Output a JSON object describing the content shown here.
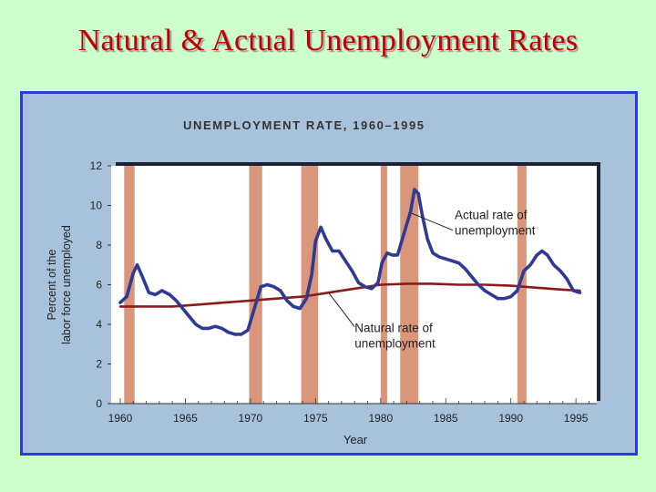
{
  "slide": {
    "title": "Natural & Actual Unemployment Rates"
  },
  "colors": {
    "slide_background": "#ccffcc",
    "title": "#c00000",
    "frame_border": "#2a3bd8",
    "figure_background": "#a9c2db",
    "plot_background": "#ffffff",
    "actual_line": "#2f3a94",
    "natural_line": "#8b1a1a",
    "recession_bands": "#d9967a"
  },
  "chart_data": {
    "type": "line",
    "title": "UNEMPLOYMENT RATE, 1960–1995",
    "xlabel": "Year",
    "ylabel": [
      "Percent of the",
      "labor force unemployed"
    ],
    "xlim": [
      1959.3,
      1996.6
    ],
    "ylim": [
      0,
      12
    ],
    "x_ticks": [
      1960,
      1965,
      1970,
      1975,
      1980,
      1985,
      1990,
      1995
    ],
    "y_ticks": [
      0,
      2,
      4,
      6,
      8,
      10,
      12
    ],
    "grid": false,
    "recession_periods": [
      [
        1960.3,
        1961.1
      ],
      [
        1969.9,
        1970.9
      ],
      [
        1973.9,
        1975.2
      ],
      [
        1980.0,
        1980.5
      ],
      [
        1981.5,
        1982.9
      ],
      [
        1990.5,
        1991.2
      ]
    ],
    "series": [
      {
        "name": "Actual rate of unemployment",
        "x": [
          1960.0,
          1960.5,
          1961.0,
          1961.3,
          1961.7,
          1962.2,
          1962.7,
          1963.2,
          1963.8,
          1964.3,
          1964.8,
          1965.3,
          1965.8,
          1966.3,
          1966.8,
          1967.3,
          1967.8,
          1968.3,
          1968.8,
          1969.3,
          1969.8,
          1970.3,
          1970.8,
          1971.3,
          1971.8,
          1972.3,
          1972.8,
          1973.3,
          1973.8,
          1974.3,
          1974.7,
          1975.0,
          1975.4,
          1975.8,
          1976.3,
          1976.8,
          1977.3,
          1977.8,
          1978.3,
          1978.8,
          1979.3,
          1979.8,
          1980.1,
          1980.5,
          1980.9,
          1981.3,
          1981.8,
          1982.3,
          1982.6,
          1982.9,
          1983.2,
          1983.6,
          1984.0,
          1984.5,
          1985.0,
          1985.5,
          1986.0,
          1986.5,
          1987.0,
          1987.5,
          1988.0,
          1988.5,
          1989.0,
          1989.5,
          1990.0,
          1990.5,
          1991.0,
          1991.5,
          1992.0,
          1992.4,
          1992.8,
          1993.3,
          1993.8,
          1994.3,
          1994.8,
          1995.3
        ],
        "values": [
          5.1,
          5.4,
          6.6,
          7.0,
          6.4,
          5.6,
          5.5,
          5.7,
          5.5,
          5.2,
          4.8,
          4.4,
          4.0,
          3.8,
          3.8,
          3.9,
          3.8,
          3.6,
          3.5,
          3.5,
          3.7,
          4.8,
          5.9,
          6.0,
          5.9,
          5.7,
          5.2,
          4.9,
          4.8,
          5.3,
          6.5,
          8.2,
          8.9,
          8.3,
          7.7,
          7.7,
          7.2,
          6.7,
          6.1,
          5.9,
          5.8,
          6.1,
          7.1,
          7.6,
          7.5,
          7.5,
          8.6,
          9.7,
          10.8,
          10.6,
          9.5,
          8.3,
          7.6,
          7.4,
          7.3,
          7.2,
          7.1,
          6.8,
          6.4,
          6.0,
          5.7,
          5.5,
          5.3,
          5.3,
          5.4,
          5.7,
          6.7,
          7.0,
          7.5,
          7.7,
          7.5,
          7.0,
          6.7,
          6.3,
          5.7,
          5.6
        ]
      },
      {
        "name": "Natural rate of unemployment",
        "x": [
          1960,
          1962,
          1964,
          1966,
          1968,
          1970,
          1972,
          1974,
          1976,
          1978,
          1980,
          1982,
          1984,
          1986,
          1988,
          1990,
          1992,
          1994,
          1995.3
        ],
        "values": [
          4.9,
          4.9,
          4.9,
          5.0,
          5.1,
          5.2,
          5.3,
          5.4,
          5.6,
          5.8,
          6.0,
          6.05,
          6.05,
          6.0,
          6.0,
          5.95,
          5.85,
          5.75,
          5.7
        ]
      }
    ],
    "annotations": [
      {
        "text": [
          "Actual rate of",
          "unemployment"
        ],
        "target": [
          1982.4,
          9.6
        ],
        "text_at": [
          1985.4,
          9.3
        ]
      },
      {
        "text": [
          "Natural rate of",
          "unemployment"
        ],
        "target": [
          1976.0,
          5.6
        ],
        "text_at": [
          1978.0,
          3.6
        ]
      }
    ]
  }
}
